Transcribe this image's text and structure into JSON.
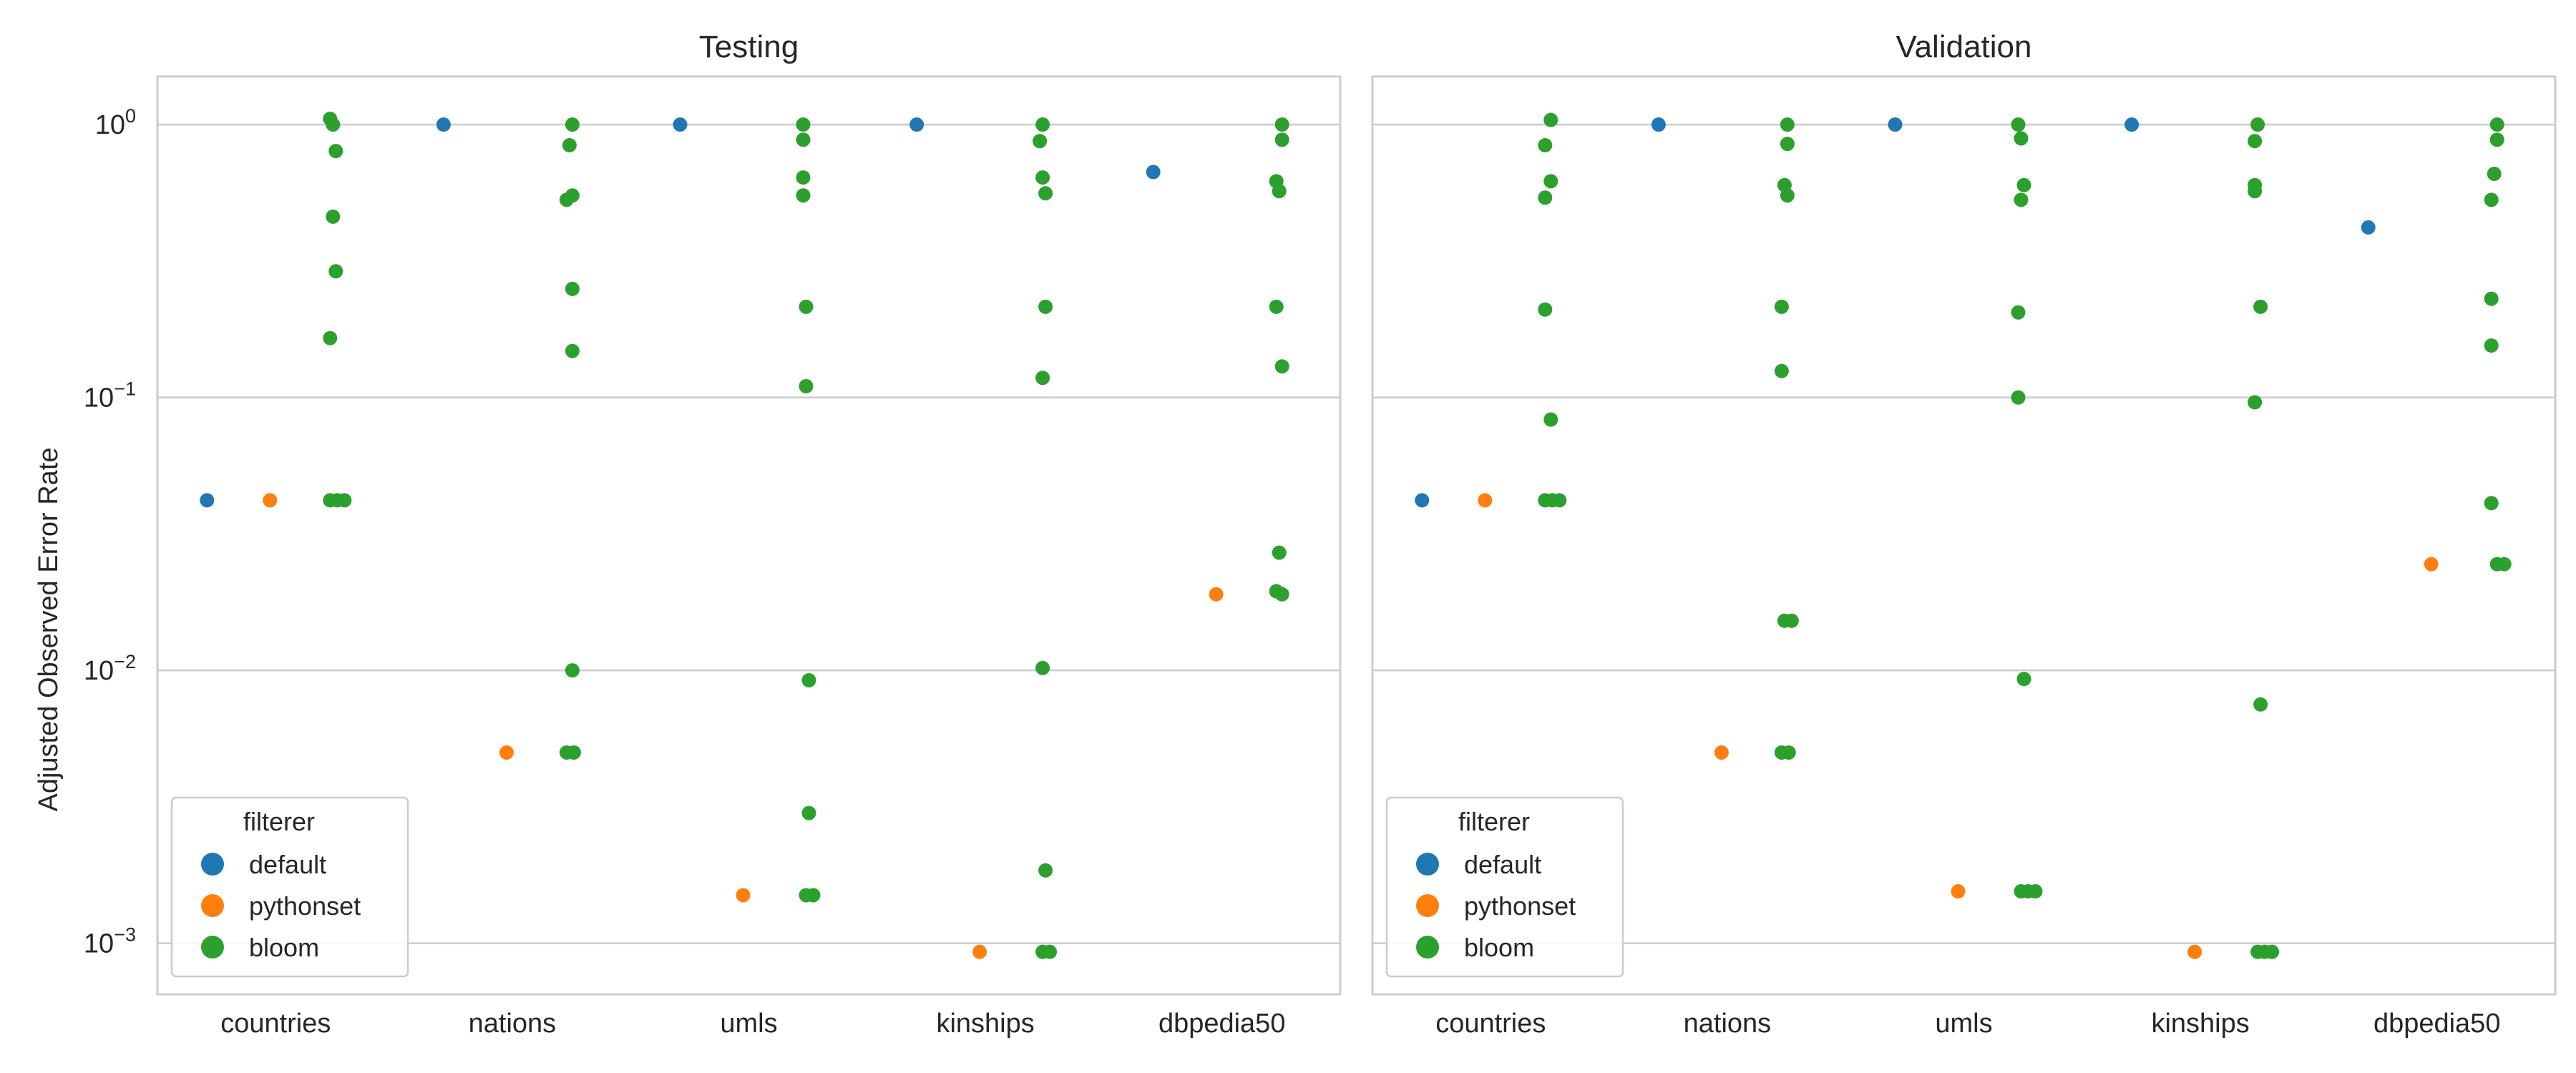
{
  "chart_data": {
    "type": "scatter",
    "ylabel": "Adjusted Observed Error Rate",
    "yscale": "log",
    "ylim": [
      0.00065,
      1.5
    ],
    "yticks": [
      {
        "value": 1,
        "base": "10",
        "exp": "0"
      },
      {
        "value": 0.1,
        "base": "10",
        "exp": "−1"
      },
      {
        "value": 0.01,
        "base": "10",
        "exp": "−2"
      },
      {
        "value": 0.001,
        "base": "10",
        "exp": "−3"
      }
    ],
    "grid": true,
    "categories": [
      "countries",
      "nations",
      "umls",
      "kinships",
      "dbpedia50"
    ],
    "hue_order": [
      "default",
      "pythonset",
      "bloom"
    ],
    "colors": {
      "default": "#1f77b4",
      "pythonset": "#ff7f0e",
      "bloom": "#2ca02c"
    },
    "legend": {
      "title": "filterer",
      "entries": [
        "default",
        "pythonset",
        "bloom"
      ],
      "placement": "lower-left"
    },
    "panels": [
      {
        "title": "Testing",
        "series": [
          {
            "name": "default",
            "points": [
              {
                "category": "countries",
                "y": 0.042
              },
              {
                "category": "nations",
                "y": 1.0
              },
              {
                "category": "umls",
                "y": 1.0
              },
              {
                "category": "kinships",
                "y": 1.0
              },
              {
                "category": "dbpedia50",
                "y": 0.67
              }
            ]
          },
          {
            "name": "pythonset",
            "points": [
              {
                "category": "countries",
                "y": 0.042
              },
              {
                "category": "nations",
                "y": 0.005
              },
              {
                "category": "umls",
                "y": 0.0015
              },
              {
                "category": "kinships",
                "y": 0.00093
              },
              {
                "category": "dbpedia50",
                "y": 0.019
              }
            ]
          },
          {
            "name": "bloom",
            "points": [
              {
                "category": "countries",
                "y": 1.05
              },
              {
                "category": "countries",
                "y": 1.0
              },
              {
                "category": "countries",
                "y": 0.8
              },
              {
                "category": "countries",
                "y": 0.46
              },
              {
                "category": "countries",
                "y": 0.29
              },
              {
                "category": "countries",
                "y": 0.165
              },
              {
                "category": "countries",
                "y": 0.042
              },
              {
                "category": "countries",
                "y": 0.042
              },
              {
                "category": "countries",
                "y": 0.042
              },
              {
                "category": "nations",
                "y": 1.0
              },
              {
                "category": "nations",
                "y": 0.84
              },
              {
                "category": "nations",
                "y": 0.55
              },
              {
                "category": "nations",
                "y": 0.53
              },
              {
                "category": "nations",
                "y": 0.25
              },
              {
                "category": "nations",
                "y": 0.148
              },
              {
                "category": "nations",
                "y": 0.01
              },
              {
                "category": "nations",
                "y": 0.005
              },
              {
                "category": "nations",
                "y": 0.005
              },
              {
                "category": "umls",
                "y": 1.0
              },
              {
                "category": "umls",
                "y": 0.88
              },
              {
                "category": "umls",
                "y": 0.64
              },
              {
                "category": "umls",
                "y": 0.55
              },
              {
                "category": "umls",
                "y": 0.215
              },
              {
                "category": "umls",
                "y": 0.11
              },
              {
                "category": "umls",
                "y": 0.0092
              },
              {
                "category": "umls",
                "y": 0.003
              },
              {
                "category": "umls",
                "y": 0.0015
              },
              {
                "category": "umls",
                "y": 0.0015
              },
              {
                "category": "kinships",
                "y": 1.0
              },
              {
                "category": "kinships",
                "y": 0.87
              },
              {
                "category": "kinships",
                "y": 0.64
              },
              {
                "category": "kinships",
                "y": 0.56
              },
              {
                "category": "kinships",
                "y": 0.215
              },
              {
                "category": "kinships",
                "y": 0.118
              },
              {
                "category": "kinships",
                "y": 0.0102
              },
              {
                "category": "kinships",
                "y": 0.00185
              },
              {
                "category": "kinships",
                "y": 0.00093
              },
              {
                "category": "kinships",
                "y": 0.00093
              },
              {
                "category": "dbpedia50",
                "y": 1.0
              },
              {
                "category": "dbpedia50",
                "y": 0.88
              },
              {
                "category": "dbpedia50",
                "y": 0.62
              },
              {
                "category": "dbpedia50",
                "y": 0.57
              },
              {
                "category": "dbpedia50",
                "y": 0.215
              },
              {
                "category": "dbpedia50",
                "y": 0.13
              },
              {
                "category": "dbpedia50",
                "y": 0.027
              },
              {
                "category": "dbpedia50",
                "y": 0.0195
              },
              {
                "category": "dbpedia50",
                "y": 0.019
              }
            ]
          }
        ]
      },
      {
        "title": "Validation",
        "series": [
          {
            "name": "default",
            "points": [
              {
                "category": "countries",
                "y": 0.042
              },
              {
                "category": "nations",
                "y": 1.0
              },
              {
                "category": "umls",
                "y": 1.0
              },
              {
                "category": "kinships",
                "y": 1.0
              },
              {
                "category": "dbpedia50",
                "y": 0.42
              }
            ]
          },
          {
            "name": "pythonset",
            "points": [
              {
                "category": "countries",
                "y": 0.042
              },
              {
                "category": "nations",
                "y": 0.005
              },
              {
                "category": "umls",
                "y": 0.00155
              },
              {
                "category": "kinships",
                "y": 0.00093
              },
              {
                "category": "dbpedia50",
                "y": 0.0245
              }
            ]
          },
          {
            "name": "bloom",
            "points": [
              {
                "category": "countries",
                "y": 1.04
              },
              {
                "category": "countries",
                "y": 0.84
              },
              {
                "category": "countries",
                "y": 0.62
              },
              {
                "category": "countries",
                "y": 0.54
              },
              {
                "category": "countries",
                "y": 0.21
              },
              {
                "category": "countries",
                "y": 0.083
              },
              {
                "category": "countries",
                "y": 0.042
              },
              {
                "category": "countries",
                "y": 0.042
              },
              {
                "category": "countries",
                "y": 0.042
              },
              {
                "category": "nations",
                "y": 1.0
              },
              {
                "category": "nations",
                "y": 0.85
              },
              {
                "category": "nations",
                "y": 0.6
              },
              {
                "category": "nations",
                "y": 0.55
              },
              {
                "category": "nations",
                "y": 0.215
              },
              {
                "category": "nations",
                "y": 0.125
              },
              {
                "category": "nations",
                "y": 0.0152
              },
              {
                "category": "nations",
                "y": 0.0152
              },
              {
                "category": "nations",
                "y": 0.005
              },
              {
                "category": "nations",
                "y": 0.005
              },
              {
                "category": "umls",
                "y": 1.0
              },
              {
                "category": "umls",
                "y": 0.89
              },
              {
                "category": "umls",
                "y": 0.6
              },
              {
                "category": "umls",
                "y": 0.53
              },
              {
                "category": "umls",
                "y": 0.205
              },
              {
                "category": "umls",
                "y": 0.1
              },
              {
                "category": "umls",
                "y": 0.0093
              },
              {
                "category": "umls",
                "y": 0.00155
              },
              {
                "category": "umls",
                "y": 0.00155
              },
              {
                "category": "umls",
                "y": 0.00155
              },
              {
                "category": "kinships",
                "y": 1.0
              },
              {
                "category": "kinships",
                "y": 0.87
              },
              {
                "category": "kinships",
                "y": 0.6
              },
              {
                "category": "kinships",
                "y": 0.57
              },
              {
                "category": "kinships",
                "y": 0.215
              },
              {
                "category": "kinships",
                "y": 0.096
              },
              {
                "category": "kinships",
                "y": 0.0075
              },
              {
                "category": "kinships",
                "y": 0.00093
              },
              {
                "category": "kinships",
                "y": 0.00093
              },
              {
                "category": "kinships",
                "y": 0.00093
              },
              {
                "category": "dbpedia50",
                "y": 1.0
              },
              {
                "category": "dbpedia50",
                "y": 0.88
              },
              {
                "category": "dbpedia50",
                "y": 0.66
              },
              {
                "category": "dbpedia50",
                "y": 0.53
              },
              {
                "category": "dbpedia50",
                "y": 0.23
              },
              {
                "category": "dbpedia50",
                "y": 0.155
              },
              {
                "category": "dbpedia50",
                "y": 0.041
              },
              {
                "category": "dbpedia50",
                "y": 0.0245
              },
              {
                "category": "dbpedia50",
                "y": 0.0245
              }
            ]
          }
        ]
      }
    ]
  }
}
